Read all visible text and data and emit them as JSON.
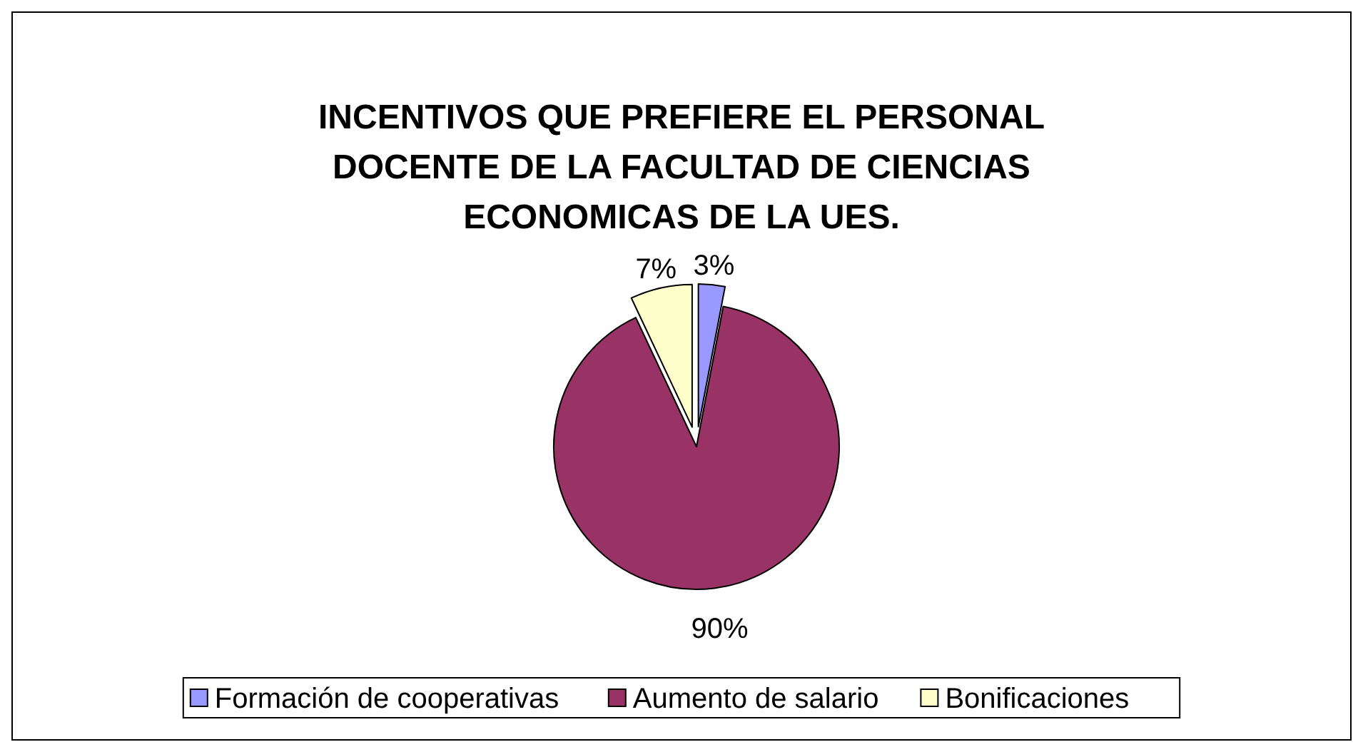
{
  "chart_data": {
    "type": "pie",
    "title": "INCENTIVOS QUE PREFIERE EL PERSONAL DOCENTE DE LA FACULTAD DE CIENCIAS ECONOMICAS DE LA UES.",
    "categories": [
      "Formación de cooperativas",
      "Aumento de salario",
      "Bonificaciones"
    ],
    "values": [
      3,
      90,
      7
    ],
    "value_labels": [
      "3%",
      "90%",
      "7%"
    ],
    "colors": [
      "#9999ff",
      "#993366",
      "#ffffcc"
    ],
    "legend": "bottom"
  }
}
